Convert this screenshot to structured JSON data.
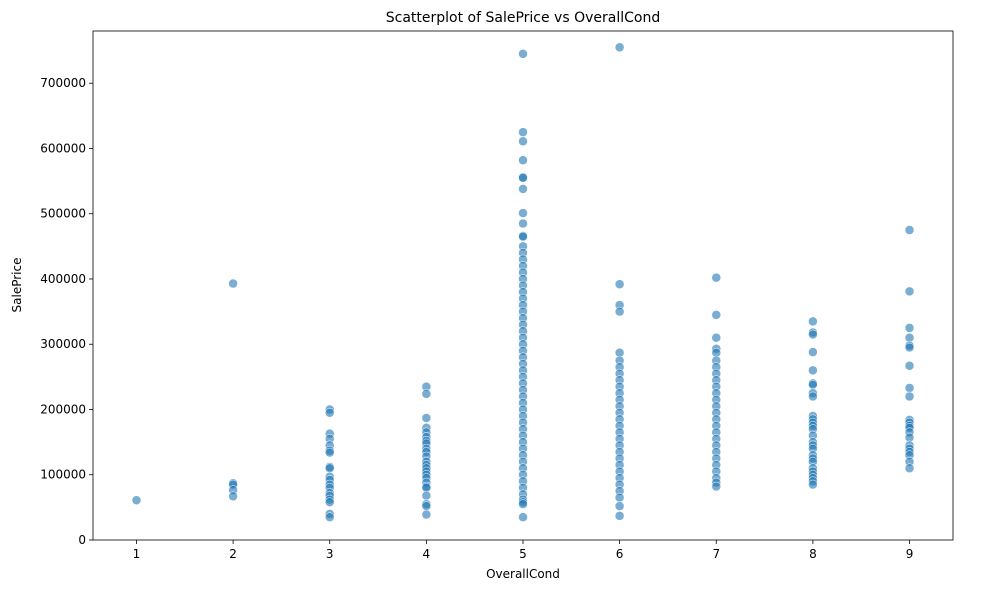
{
  "chart_data": {
    "type": "scatter",
    "title": "Scatterplot of SalePrice vs OverallCond",
    "xlabel": "OverallCond",
    "ylabel": "SalePrice",
    "xlim": [
      0.55,
      9.45
    ],
    "ylim": [
      0,
      780000
    ],
    "x_ticks": [
      1,
      2,
      3,
      4,
      5,
      6,
      7,
      8,
      9
    ],
    "y_ticks": [
      0,
      100000,
      200000,
      300000,
      400000,
      500000,
      600000,
      700000
    ],
    "y_tick_labels": [
      "0",
      "100000",
      "200000",
      "300000",
      "400000",
      "500000",
      "600000",
      "700000"
    ],
    "grid": false,
    "marker_color": "#1f77b4",
    "series": [
      {
        "points": [
          {
            "x": 1,
            "y": 61000
          },
          {
            "x": 2,
            "y": 393000
          },
          {
            "x": 2,
            "y": 87000
          },
          {
            "x": 2,
            "y": 85000
          },
          {
            "x": 2,
            "y": 76500
          },
          {
            "x": 2,
            "y": 67000
          },
          {
            "x": 3,
            "y": 200000
          },
          {
            "x": 3,
            "y": 195000
          },
          {
            "x": 3,
            "y": 163000
          },
          {
            "x": 3,
            "y": 155000
          },
          {
            "x": 3,
            "y": 145000
          },
          {
            "x": 3,
            "y": 137000
          },
          {
            "x": 3,
            "y": 134000
          },
          {
            "x": 3,
            "y": 112000
          },
          {
            "x": 3,
            "y": 110000
          },
          {
            "x": 3,
            "y": 97000
          },
          {
            "x": 3,
            "y": 92000
          },
          {
            "x": 3,
            "y": 85000
          },
          {
            "x": 3,
            "y": 80000
          },
          {
            "x": 3,
            "y": 72000
          },
          {
            "x": 3,
            "y": 68000
          },
          {
            "x": 3,
            "y": 62000
          },
          {
            "x": 3,
            "y": 58000
          },
          {
            "x": 3,
            "y": 40000
          },
          {
            "x": 3,
            "y": 35000
          },
          {
            "x": 4,
            "y": 235000
          },
          {
            "x": 4,
            "y": 224000
          },
          {
            "x": 4,
            "y": 187000
          },
          {
            "x": 4,
            "y": 172000
          },
          {
            "x": 4,
            "y": 165000
          },
          {
            "x": 4,
            "y": 158000
          },
          {
            "x": 4,
            "y": 152000
          },
          {
            "x": 4,
            "y": 148000
          },
          {
            "x": 4,
            "y": 140000
          },
          {
            "x": 4,
            "y": 135000
          },
          {
            "x": 4,
            "y": 128000
          },
          {
            "x": 4,
            "y": 120000
          },
          {
            "x": 4,
            "y": 115000
          },
          {
            "x": 4,
            "y": 110000
          },
          {
            "x": 4,
            "y": 105000
          },
          {
            "x": 4,
            "y": 100000
          },
          {
            "x": 4,
            "y": 95000
          },
          {
            "x": 4,
            "y": 88000
          },
          {
            "x": 4,
            "y": 82000
          },
          {
            "x": 4,
            "y": 80000
          },
          {
            "x": 4,
            "y": 68000
          },
          {
            "x": 4,
            "y": 55000
          },
          {
            "x": 4,
            "y": 52000
          },
          {
            "x": 4,
            "y": 39000
          },
          {
            "x": 5,
            "y": 745000
          },
          {
            "x": 5,
            "y": 625000
          },
          {
            "x": 5,
            "y": 611000
          },
          {
            "x": 5,
            "y": 582000
          },
          {
            "x": 5,
            "y": 556000
          },
          {
            "x": 5,
            "y": 555000
          },
          {
            "x": 5,
            "y": 538000
          },
          {
            "x": 5,
            "y": 501000
          },
          {
            "x": 5,
            "y": 485000
          },
          {
            "x": 5,
            "y": 466000
          },
          {
            "x": 5,
            "y": 465000
          },
          {
            "x": 5,
            "y": 450000
          },
          {
            "x": 5,
            "y": 440000
          },
          {
            "x": 5,
            "y": 430000
          },
          {
            "x": 5,
            "y": 420000
          },
          {
            "x": 5,
            "y": 410000
          },
          {
            "x": 5,
            "y": 400000
          },
          {
            "x": 5,
            "y": 390000
          },
          {
            "x": 5,
            "y": 380000
          },
          {
            "x": 5,
            "y": 370000
          },
          {
            "x": 5,
            "y": 360000
          },
          {
            "x": 5,
            "y": 350000
          },
          {
            "x": 5,
            "y": 340000
          },
          {
            "x": 5,
            "y": 330000
          },
          {
            "x": 5,
            "y": 320000
          },
          {
            "x": 5,
            "y": 310000
          },
          {
            "x": 5,
            "y": 300000
          },
          {
            "x": 5,
            "y": 290000
          },
          {
            "x": 5,
            "y": 280000
          },
          {
            "x": 5,
            "y": 270000
          },
          {
            "x": 5,
            "y": 260000
          },
          {
            "x": 5,
            "y": 250000
          },
          {
            "x": 5,
            "y": 240000
          },
          {
            "x": 5,
            "y": 230000
          },
          {
            "x": 5,
            "y": 220000
          },
          {
            "x": 5,
            "y": 210000
          },
          {
            "x": 5,
            "y": 200000
          },
          {
            "x": 5,
            "y": 190000
          },
          {
            "x": 5,
            "y": 180000
          },
          {
            "x": 5,
            "y": 170000
          },
          {
            "x": 5,
            "y": 160000
          },
          {
            "x": 5,
            "y": 150000
          },
          {
            "x": 5,
            "y": 140000
          },
          {
            "x": 5,
            "y": 130000
          },
          {
            "x": 5,
            "y": 120000
          },
          {
            "x": 5,
            "y": 110000
          },
          {
            "x": 5,
            "y": 100000
          },
          {
            "x": 5,
            "y": 90000
          },
          {
            "x": 5,
            "y": 80000
          },
          {
            "x": 5,
            "y": 70000
          },
          {
            "x": 5,
            "y": 62000
          },
          {
            "x": 5,
            "y": 58000
          },
          {
            "x": 5,
            "y": 55000
          },
          {
            "x": 5,
            "y": 35000
          },
          {
            "x": 6,
            "y": 755000
          },
          {
            "x": 6,
            "y": 392000
          },
          {
            "x": 6,
            "y": 360000
          },
          {
            "x": 6,
            "y": 350000
          },
          {
            "x": 6,
            "y": 287000
          },
          {
            "x": 6,
            "y": 275000
          },
          {
            "x": 6,
            "y": 265000
          },
          {
            "x": 6,
            "y": 255000
          },
          {
            "x": 6,
            "y": 245000
          },
          {
            "x": 6,
            "y": 235000
          },
          {
            "x": 6,
            "y": 225000
          },
          {
            "x": 6,
            "y": 215000
          },
          {
            "x": 6,
            "y": 205000
          },
          {
            "x": 6,
            "y": 195000
          },
          {
            "x": 6,
            "y": 185000
          },
          {
            "x": 6,
            "y": 175000
          },
          {
            "x": 6,
            "y": 165000
          },
          {
            "x": 6,
            "y": 155000
          },
          {
            "x": 6,
            "y": 145000
          },
          {
            "x": 6,
            "y": 135000
          },
          {
            "x": 6,
            "y": 125000
          },
          {
            "x": 6,
            "y": 115000
          },
          {
            "x": 6,
            "y": 105000
          },
          {
            "x": 6,
            "y": 95000
          },
          {
            "x": 6,
            "y": 85000
          },
          {
            "x": 6,
            "y": 75000
          },
          {
            "x": 6,
            "y": 65000
          },
          {
            "x": 6,
            "y": 52000
          },
          {
            "x": 6,
            "y": 37000
          },
          {
            "x": 7,
            "y": 402000
          },
          {
            "x": 7,
            "y": 345000
          },
          {
            "x": 7,
            "y": 310000
          },
          {
            "x": 7,
            "y": 293000
          },
          {
            "x": 7,
            "y": 287000
          },
          {
            "x": 7,
            "y": 275000
          },
          {
            "x": 7,
            "y": 265000
          },
          {
            "x": 7,
            "y": 255000
          },
          {
            "x": 7,
            "y": 245000
          },
          {
            "x": 7,
            "y": 235000
          },
          {
            "x": 7,
            "y": 225000
          },
          {
            "x": 7,
            "y": 215000
          },
          {
            "x": 7,
            "y": 205000
          },
          {
            "x": 7,
            "y": 195000
          },
          {
            "x": 7,
            "y": 185000
          },
          {
            "x": 7,
            "y": 175000
          },
          {
            "x": 7,
            "y": 165000
          },
          {
            "x": 7,
            "y": 155000
          },
          {
            "x": 7,
            "y": 145000
          },
          {
            "x": 7,
            "y": 135000
          },
          {
            "x": 7,
            "y": 125000
          },
          {
            "x": 7,
            "y": 115000
          },
          {
            "x": 7,
            "y": 105000
          },
          {
            "x": 7,
            "y": 95000
          },
          {
            "x": 7,
            "y": 88000
          },
          {
            "x": 7,
            "y": 82000
          },
          {
            "x": 8,
            "y": 335000
          },
          {
            "x": 8,
            "y": 318000
          },
          {
            "x": 8,
            "y": 315000
          },
          {
            "x": 8,
            "y": 288000
          },
          {
            "x": 8,
            "y": 260000
          },
          {
            "x": 8,
            "y": 240000
          },
          {
            "x": 8,
            "y": 238000
          },
          {
            "x": 8,
            "y": 225000
          },
          {
            "x": 8,
            "y": 220000
          },
          {
            "x": 8,
            "y": 190000
          },
          {
            "x": 8,
            "y": 185000
          },
          {
            "x": 8,
            "y": 180000
          },
          {
            "x": 8,
            "y": 175000
          },
          {
            "x": 8,
            "y": 170000
          },
          {
            "x": 8,
            "y": 160000
          },
          {
            "x": 8,
            "y": 150000
          },
          {
            "x": 8,
            "y": 145000
          },
          {
            "x": 8,
            "y": 140000
          },
          {
            "x": 8,
            "y": 130000
          },
          {
            "x": 8,
            "y": 125000
          },
          {
            "x": 8,
            "y": 120000
          },
          {
            "x": 8,
            "y": 110000
          },
          {
            "x": 8,
            "y": 105000
          },
          {
            "x": 8,
            "y": 100000
          },
          {
            "x": 8,
            "y": 95000
          },
          {
            "x": 8,
            "y": 90000
          },
          {
            "x": 8,
            "y": 85000
          },
          {
            "x": 9,
            "y": 475000
          },
          {
            "x": 9,
            "y": 381000
          },
          {
            "x": 9,
            "y": 325000
          },
          {
            "x": 9,
            "y": 310000
          },
          {
            "x": 9,
            "y": 298000
          },
          {
            "x": 9,
            "y": 295000
          },
          {
            "x": 9,
            "y": 267000
          },
          {
            "x": 9,
            "y": 233000
          },
          {
            "x": 9,
            "y": 220000
          },
          {
            "x": 9,
            "y": 184000
          },
          {
            "x": 9,
            "y": 180000
          },
          {
            "x": 9,
            "y": 175000
          },
          {
            "x": 9,
            "y": 172000
          },
          {
            "x": 9,
            "y": 165000
          },
          {
            "x": 9,
            "y": 157000
          },
          {
            "x": 9,
            "y": 145000
          },
          {
            "x": 9,
            "y": 140000
          },
          {
            "x": 9,
            "y": 135000
          },
          {
            "x": 9,
            "y": 130000
          },
          {
            "x": 9,
            "y": 120000
          },
          {
            "x": 9,
            "y": 110000
          }
        ]
      }
    ]
  }
}
